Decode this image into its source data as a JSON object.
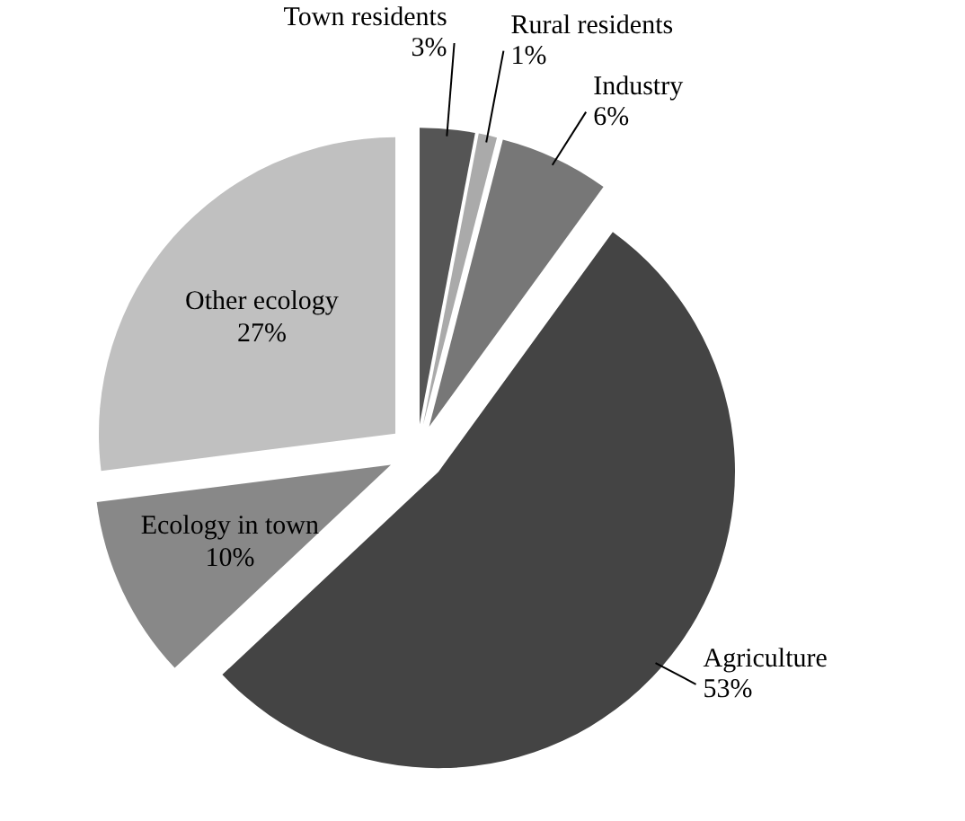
{
  "chart_data": {
    "type": "pie",
    "categories": [
      "Town residents",
      "Rural residents",
      "Industry",
      "Agriculture",
      "Ecology in town",
      "Other ecology"
    ],
    "values": [
      3,
      1,
      6,
      53,
      10,
      27
    ],
    "value_labels": [
      "3%",
      "1%",
      "6%",
      "53%",
      "10%",
      "27%"
    ],
    "colors": [
      "#555555",
      "#aaaaaa",
      "#777777",
      "#444444",
      "#888888",
      "#c0c0c0"
    ]
  }
}
